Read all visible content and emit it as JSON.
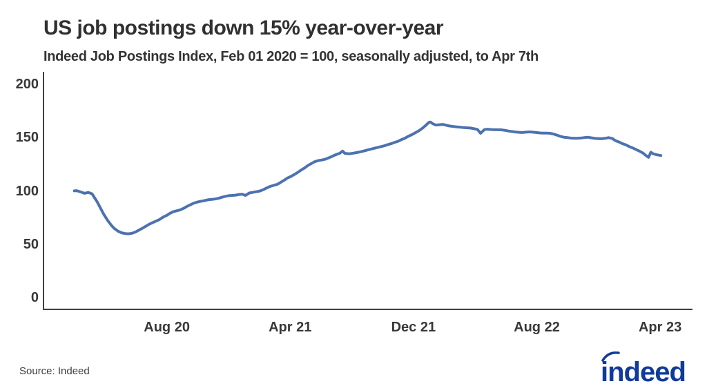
{
  "header": {
    "title": "US job postings down 15% year-over-year",
    "subtitle": "Indeed Job Postings Index, Feb 01 2020 = 100, seasonally adjusted, to Apr 7th"
  },
  "footer": {
    "source": "Source: Indeed",
    "logo_text": "indeed"
  },
  "colors": {
    "line": "#4C72B0",
    "axis": "#3F3F3F",
    "tick_text": "#383838",
    "title_text": "#303030",
    "logo_blue": "#103A9B"
  },
  "chart_data": {
    "type": "line",
    "title": "US job postings down 15% year-over-year",
    "subtitle": "Indeed Job Postings Index, Feb 01 2020 = 100, seasonally adjusted, to Apr 7th",
    "x_unit": "months since Feb 01 2020 (Feb 01 2020 = 0)",
    "xlim": [
      -2.0,
      40.1
    ],
    "ylim": [
      -10.7,
      211.6
    ],
    "grid": false,
    "legend": false,
    "line_width": 4,
    "y_ticks": [
      0,
      50,
      100,
      150,
      200
    ],
    "x_ticks": [
      {
        "m": 6,
        "label": "Aug 20"
      },
      {
        "m": 14,
        "label": "Apr 21"
      },
      {
        "m": 22,
        "label": "Dec 21"
      },
      {
        "m": 30,
        "label": "Aug 22"
      },
      {
        "m": 38,
        "label": "Apr 23"
      }
    ],
    "series": [
      {
        "name": "Indeed Job Postings Index (US, seasonally adjusted)",
        "color": "#4C72B0",
        "points": [
          [
            0,
            100.2
          ],
          [
            0.15,
            100.4
          ],
          [
            0.4,
            99.2
          ],
          [
            0.65,
            97.9
          ],
          [
            0.9,
            98.7
          ],
          [
            1.15,
            97.5
          ],
          [
            1.3,
            94.0
          ],
          [
            1.5,
            89.5
          ],
          [
            1.7,
            84.0
          ],
          [
            1.9,
            78.5
          ],
          [
            2.15,
            72.7
          ],
          [
            2.4,
            68.0
          ],
          [
            2.6,
            64.9
          ],
          [
            2.85,
            62.3
          ],
          [
            3.05,
            61.0
          ],
          [
            3.3,
            60.2
          ],
          [
            3.5,
            60.0
          ],
          [
            3.75,
            60.5
          ],
          [
            3.95,
            61.6
          ],
          [
            4.2,
            63.5
          ],
          [
            4.4,
            65.1
          ],
          [
            4.6,
            66.8
          ],
          [
            4.85,
            68.9
          ],
          [
            5.05,
            70.3
          ],
          [
            5.3,
            71.9
          ],
          [
            5.5,
            73.2
          ],
          [
            5.75,
            75.5
          ],
          [
            6,
            77.3
          ],
          [
            6.2,
            79.1
          ],
          [
            6.4,
            80.6
          ],
          [
            6.65,
            81.6
          ],
          [
            6.85,
            82.3
          ],
          [
            7.1,
            83.9
          ],
          [
            7.3,
            85.6
          ],
          [
            7.55,
            87.3
          ],
          [
            7.75,
            88.7
          ],
          [
            8,
            89.8
          ],
          [
            8.2,
            90.4
          ],
          [
            8.45,
            91.1
          ],
          [
            8.65,
            91.8
          ],
          [
            8.9,
            92.2
          ],
          [
            9.1,
            92.5
          ],
          [
            9.35,
            93.2
          ],
          [
            9.55,
            94.1
          ],
          [
            9.8,
            95.1
          ],
          [
            10,
            95.7
          ],
          [
            10.25,
            95.9
          ],
          [
            10.45,
            96.2
          ],
          [
            10.7,
            96.8
          ],
          [
            10.9,
            97.0
          ],
          [
            11.1,
            95.9
          ],
          [
            11.35,
            98.2
          ],
          [
            11.6,
            98.9
          ],
          [
            11.8,
            99.4
          ],
          [
            12,
            99.9
          ],
          [
            12.25,
            101.2
          ],
          [
            12.45,
            102.7
          ],
          [
            12.7,
            104.3
          ],
          [
            12.9,
            105.2
          ],
          [
            13.15,
            106.2
          ],
          [
            13.35,
            107.8
          ],
          [
            13.6,
            110.0
          ],
          [
            13.8,
            112.0
          ],
          [
            14.05,
            113.7
          ],
          [
            14.25,
            115.3
          ],
          [
            14.5,
            117.5
          ],
          [
            14.7,
            119.6
          ],
          [
            14.95,
            121.8
          ],
          [
            15.15,
            123.9
          ],
          [
            15.4,
            126.0
          ],
          [
            15.6,
            127.5
          ],
          [
            15.85,
            128.6
          ],
          [
            16.05,
            129.1
          ],
          [
            16.3,
            129.9
          ],
          [
            16.5,
            131.1
          ],
          [
            16.75,
            132.6
          ],
          [
            16.95,
            134.0
          ],
          [
            17.2,
            135.2
          ],
          [
            17.4,
            137.4
          ],
          [
            17.55,
            135.3
          ],
          [
            17.85,
            134.9
          ],
          [
            18.1,
            135.5
          ],
          [
            18.3,
            136.0
          ],
          [
            18.55,
            136.7
          ],
          [
            18.75,
            137.4
          ],
          [
            19,
            138.4
          ],
          [
            19.2,
            139.1
          ],
          [
            19.4,
            139.9
          ],
          [
            19.65,
            140.7
          ],
          [
            19.85,
            141.4
          ],
          [
            20.1,
            142.3
          ],
          [
            20.3,
            143.3
          ],
          [
            20.55,
            144.3
          ],
          [
            20.75,
            145.4
          ],
          [
            21,
            146.6
          ],
          [
            21.2,
            148.0
          ],
          [
            21.45,
            149.5
          ],
          [
            21.65,
            151.2
          ],
          [
            21.9,
            152.8
          ],
          [
            22.1,
            154.4
          ],
          [
            22.35,
            156.4
          ],
          [
            22.55,
            158.4
          ],
          [
            22.8,
            161.5
          ],
          [
            23,
            164.3
          ],
          [
            23.1,
            164.6
          ],
          [
            23.25,
            163.0
          ],
          [
            23.45,
            161.8
          ],
          [
            23.7,
            162.1
          ],
          [
            23.9,
            162.4
          ],
          [
            24.15,
            161.5
          ],
          [
            24.35,
            160.9
          ],
          [
            24.6,
            160.4
          ],
          [
            24.8,
            160.1
          ],
          [
            25.05,
            159.8
          ],
          [
            25.25,
            159.4
          ],
          [
            25.5,
            159.2
          ],
          [
            25.7,
            159.0
          ],
          [
            25.95,
            158.3
          ],
          [
            26.15,
            157.7
          ],
          [
            26.35,
            154.1
          ],
          [
            26.6,
            157.5
          ],
          [
            26.8,
            157.9
          ],
          [
            27.05,
            157.6
          ],
          [
            27.3,
            157.4
          ],
          [
            27.5,
            157.4
          ],
          [
            27.7,
            157.3
          ],
          [
            27.95,
            156.8
          ],
          [
            28.15,
            156.2
          ],
          [
            28.4,
            155.7
          ],
          [
            28.6,
            155.3
          ],
          [
            28.85,
            155.0
          ],
          [
            29.05,
            154.8
          ],
          [
            29.3,
            155.1
          ],
          [
            29.5,
            155.4
          ],
          [
            29.75,
            155.1
          ],
          [
            29.95,
            154.8
          ],
          [
            30.2,
            154.4
          ],
          [
            30.4,
            154.2
          ],
          [
            30.65,
            154.2
          ],
          [
            30.85,
            154.1
          ],
          [
            31.1,
            153.3
          ],
          [
            31.3,
            152.4
          ],
          [
            31.5,
            151.3
          ],
          [
            31.75,
            150.4
          ],
          [
            32,
            150.0
          ],
          [
            32.2,
            149.6
          ],
          [
            32.4,
            149.4
          ],
          [
            32.65,
            149.4
          ],
          [
            32.9,
            149.7
          ],
          [
            33.1,
            150.1
          ],
          [
            33.3,
            150.4
          ],
          [
            33.55,
            149.8
          ],
          [
            33.75,
            149.3
          ],
          [
            34,
            149.1
          ],
          [
            34.2,
            149.0
          ],
          [
            34.45,
            149.4
          ],
          [
            34.65,
            150.0
          ],
          [
            34.9,
            149.2
          ],
          [
            35.1,
            147.1
          ],
          [
            35.35,
            145.8
          ],
          [
            35.55,
            144.4
          ],
          [
            35.8,
            143.1
          ],
          [
            36,
            141.6
          ],
          [
            36.25,
            140.2
          ],
          [
            36.45,
            138.8
          ],
          [
            36.7,
            137.1
          ],
          [
            36.9,
            135.4
          ],
          [
            37.1,
            133.0
          ],
          [
            37.25,
            131.6
          ],
          [
            37.4,
            136.4
          ],
          [
            37.55,
            134.8
          ],
          [
            37.8,
            133.9
          ],
          [
            38.05,
            133.3
          ]
        ]
      }
    ]
  }
}
